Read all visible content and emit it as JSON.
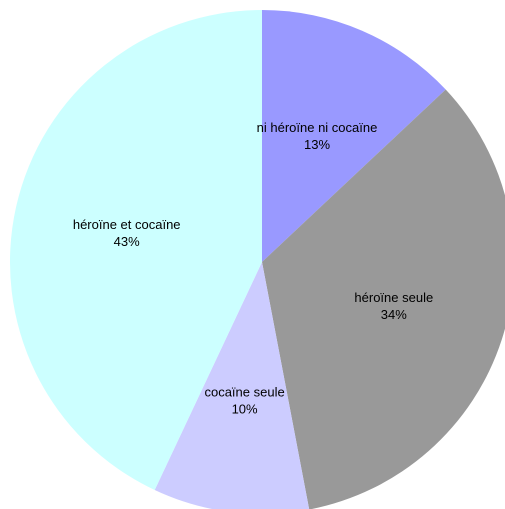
{
  "chart_data": {
    "type": "pie",
    "title": "",
    "slices": [
      {
        "label": "ni héroïne ni cocaïne",
        "value": 13,
        "value_label": "13%",
        "color": "#9999ff"
      },
      {
        "label": "héroïne seule",
        "value": 34,
        "value_label": "34%",
        "color": "#999999"
      },
      {
        "label": "cocaïne seule",
        "value": 10,
        "value_label": "10%",
        "color": "#ccccff"
      },
      {
        "label": "héroïne et cocaïne",
        "value": 43,
        "value_label": "43%",
        "color": "#ccffff"
      }
    ],
    "start_angle": "12 o'clock",
    "direction": "clockwise",
    "legend": "none"
  }
}
